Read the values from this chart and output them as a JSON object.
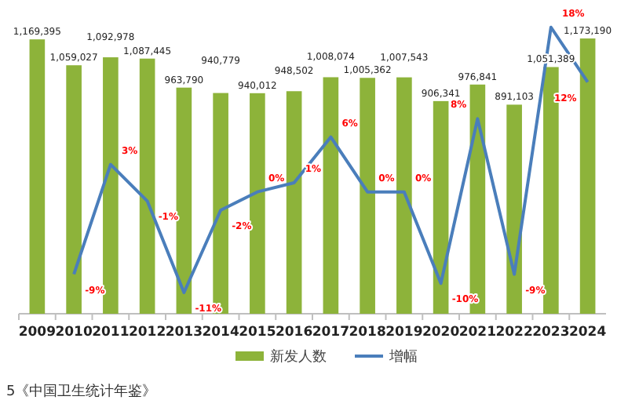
{
  "chart_data": {
    "type": "bar",
    "categories": [
      "2009",
      "2010",
      "2011",
      "2012",
      "2013",
      "2014",
      "2015",
      "2016",
      "2017",
      "2018",
      "2019",
      "2020",
      "2021",
      "2022",
      "2023",
      "2024"
    ],
    "legend": "bottom",
    "series": [
      {
        "name": "新发人数",
        "color": "#8db33a",
        "values": [
          1169395,
          1059027,
          1092978,
          1087445,
          963790,
          940779,
          940012,
          948502,
          1008074,
          1005362,
          1007543,
          906341,
          976841,
          891103,
          1051389,
          1173190
        ],
        "value_labels": [
          "1,169,395",
          "1,059,027",
          "1,092,978",
          "1,087,445",
          "963,790",
          "940,779",
          "940,012",
          "948,502",
          "1,008,074",
          "1,005,362",
          "1,007,543",
          "906,341",
          "976,841",
          "891,103",
          "1,051,389",
          "1,173,190"
        ]
      },
      {
        "name": "增幅",
        "type": "line",
        "axis": "y2",
        "color": "#4a7ebb",
        "values": [
          null,
          -9,
          3,
          -1,
          -11,
          -2,
          0,
          1,
          6,
          0,
          0,
          -10,
          8,
          -9,
          18,
          12
        ],
        "value_labels": [
          null,
          "-9%",
          "3%",
          "-1%",
          "-11%",
          "-2%",
          "0%",
          "1%",
          "6%",
          "0%",
          "0%",
          "-10%",
          "8%",
          "-9%",
          "18%",
          "12%"
        ]
      }
    ],
    "annotations": [
      "5《中国卫生统计年鉴》"
    ]
  }
}
